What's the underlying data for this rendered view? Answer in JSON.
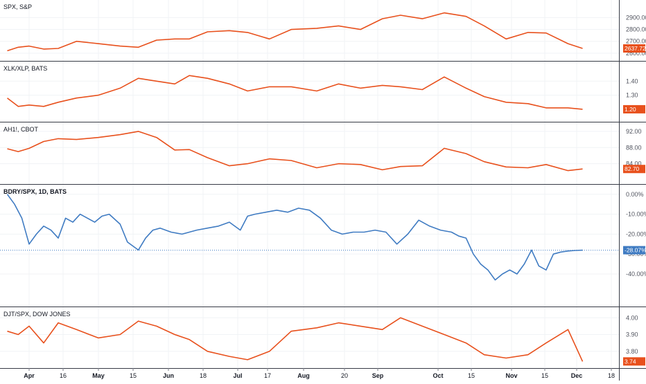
{
  "x_axis": {
    "labels": [
      "Apr",
      "16",
      "May",
      "15",
      "Jun",
      "18",
      "Jul",
      "17",
      "Aug",
      "20",
      "Sep",
      "Oct",
      "15",
      "Nov",
      "15",
      "Dec",
      "18"
    ],
    "bold": [
      "Apr",
      "May",
      "Jun",
      "Jul",
      "Aug",
      "Sep",
      "Oct",
      "Nov",
      "Dec"
    ]
  },
  "chart_data": [
    {
      "type": "line",
      "title": "SPX, S&P",
      "color": "#e8501c",
      "ylim": [
        2570,
        2990
      ],
      "yticks": [
        "2900.00",
        "2800.00",
        "2700.00",
        "2600.00"
      ],
      "last_value": "2637.72",
      "last_value_color": "#e8501c",
      "series": [
        {
          "x": [
            2,
            5,
            8,
            12,
            16,
            21,
            27,
            33,
            38,
            43,
            48,
            52,
            57,
            63,
            68,
            74,
            80,
            87,
            93,
            99,
            105,
            110,
            116,
            122,
            128,
            133,
            139,
            145,
            150,
            156,
            160
          ],
          "y": [
            2620,
            2650,
            2660,
            2635,
            2640,
            2700,
            2680,
            2660,
            2650,
            2710,
            2720,
            2720,
            2780,
            2790,
            2775,
            2720,
            2800,
            2810,
            2830,
            2800,
            2890,
            2920,
            2890,
            2940,
            2910,
            2830,
            2720,
            2775,
            2770,
            2680,
            2640
          ]
        }
      ]
    },
    {
      "type": "line",
      "title": "XLK/XLP, BATS",
      "color": "#e8501c",
      "ylim": [
        1.17,
        1.49
      ],
      "yticks": [
        "1.40",
        "1.30"
      ],
      "last_value": "1.20",
      "last_value_color": "#e8501c",
      "series": [
        {
          "x": [
            2,
            5,
            8,
            12,
            16,
            21,
            27,
            33,
            38,
            43,
            48,
            52,
            57,
            63,
            68,
            74,
            80,
            87,
            93,
            99,
            105,
            110,
            116,
            122,
            128,
            133,
            139,
            145,
            150,
            156,
            160
          ],
          "y": [
            1.28,
            1.22,
            1.23,
            1.22,
            1.25,
            1.28,
            1.3,
            1.35,
            1.42,
            1.4,
            1.38,
            1.44,
            1.42,
            1.38,
            1.33,
            1.36,
            1.36,
            1.33,
            1.38,
            1.35,
            1.37,
            1.36,
            1.34,
            1.43,
            1.35,
            1.29,
            1.25,
            1.24,
            1.21,
            1.21,
            1.2
          ]
        }
      ]
    },
    {
      "type": "line",
      "title": "AH1!, CBOT",
      "color": "#e8501c",
      "ylim": [
        80,
        92.5
      ],
      "yticks": [
        "92.00",
        "88.00",
        "84.00"
      ],
      "last_value": "82.70",
      "last_value_color": "#e8501c",
      "series": [
        {
          "x": [
            2,
            5,
            8,
            12,
            16,
            21,
            27,
            33,
            38,
            43,
            48,
            52,
            57,
            63,
            68,
            74,
            80,
            87,
            93,
            99,
            105,
            110,
            116,
            122,
            128,
            133,
            139,
            145,
            150,
            156,
            160
          ],
          "y": [
            87.7,
            87.0,
            87.8,
            89.5,
            90.2,
            90.0,
            90.5,
            91.2,
            92.0,
            90.5,
            87.4,
            87.5,
            85.5,
            83.5,
            84.0,
            85.2,
            84.8,
            83.0,
            84.0,
            83.8,
            82.5,
            83.3,
            83.5,
            87.8,
            86.5,
            84.5,
            83.2,
            83.0,
            83.8,
            82.3,
            82.7
          ]
        }
      ]
    },
    {
      "type": "line",
      "title": "BDRY/SPX, 1D, BATS",
      "color": "#3f7bc2",
      "ylim": [
        -48,
        2
      ],
      "yticks": [
        "0.00%",
        "-10.00%",
        "-20.00%",
        "-30.00%",
        "-40.00%"
      ],
      "last_value": "-28.07%",
      "last_value_color": "#3f7bc2",
      "current_line": -28.07,
      "series": [
        {
          "x": [
            2,
            4,
            6,
            8,
            10,
            12,
            14,
            16,
            18,
            20,
            22,
            24,
            26,
            28,
            30,
            33,
            35,
            38,
            40,
            42,
            44,
            47,
            50,
            52,
            54,
            57,
            60,
            63,
            66,
            68,
            70,
            73,
            76,
            79,
            82,
            85,
            88,
            91,
            94,
            97,
            100,
            103,
            106,
            109,
            112,
            115,
            118,
            121,
            124,
            126,
            128,
            130,
            132,
            134,
            136,
            138,
            140,
            142,
            144,
            146,
            148,
            150,
            152,
            154,
            156,
            158,
            160
          ],
          "y": [
            0,
            -5,
            -12,
            -25,
            -20,
            -16,
            -18,
            -22,
            -12,
            -14,
            -10,
            -12,
            -14,
            -11,
            -10,
            -15,
            -24,
            -28,
            -22,
            -18,
            -17,
            -19,
            -20,
            -19,
            -18,
            -17,
            -16,
            -14,
            -18,
            -11,
            -10,
            -9,
            -8,
            -9,
            -7,
            -8,
            -12,
            -18,
            -20,
            -19,
            -19,
            -18,
            -19,
            -25,
            -20,
            -13,
            -16,
            -18,
            -19,
            -21,
            -22,
            -30,
            -35,
            -38,
            -43,
            -40,
            -38,
            -40,
            -35,
            -28,
            -36,
            -38,
            -30,
            -29,
            -28.5,
            -28.2,
            -28.07
          ]
        }
      ]
    },
    {
      "type": "line",
      "title": "DJT/SPX, DOW JONES",
      "color": "#e8501c",
      "ylim": [
        3.725,
        4.03
      ],
      "yticks": [
        "4.00",
        "3.90",
        "3.80"
      ],
      "last_value": "3.74",
      "last_value_color": "#e8501c",
      "series": [
        {
          "x": [
            2,
            5,
            8,
            12,
            16,
            21,
            27,
            33,
            38,
            43,
            48,
            52,
            57,
            63,
            68,
            74,
            80,
            87,
            93,
            99,
            105,
            110,
            116,
            122,
            128,
            133,
            139,
            145,
            150,
            156,
            160
          ],
          "y": [
            3.92,
            3.9,
            3.95,
            3.85,
            3.97,
            3.93,
            3.88,
            3.9,
            3.98,
            3.95,
            3.9,
            3.87,
            3.8,
            3.77,
            3.75,
            3.8,
            3.92,
            3.94,
            3.97,
            3.95,
            3.93,
            4.0,
            3.95,
            3.9,
            3.85,
            3.78,
            3.76,
            3.78,
            3.85,
            3.93,
            3.74
          ]
        }
      ]
    }
  ]
}
